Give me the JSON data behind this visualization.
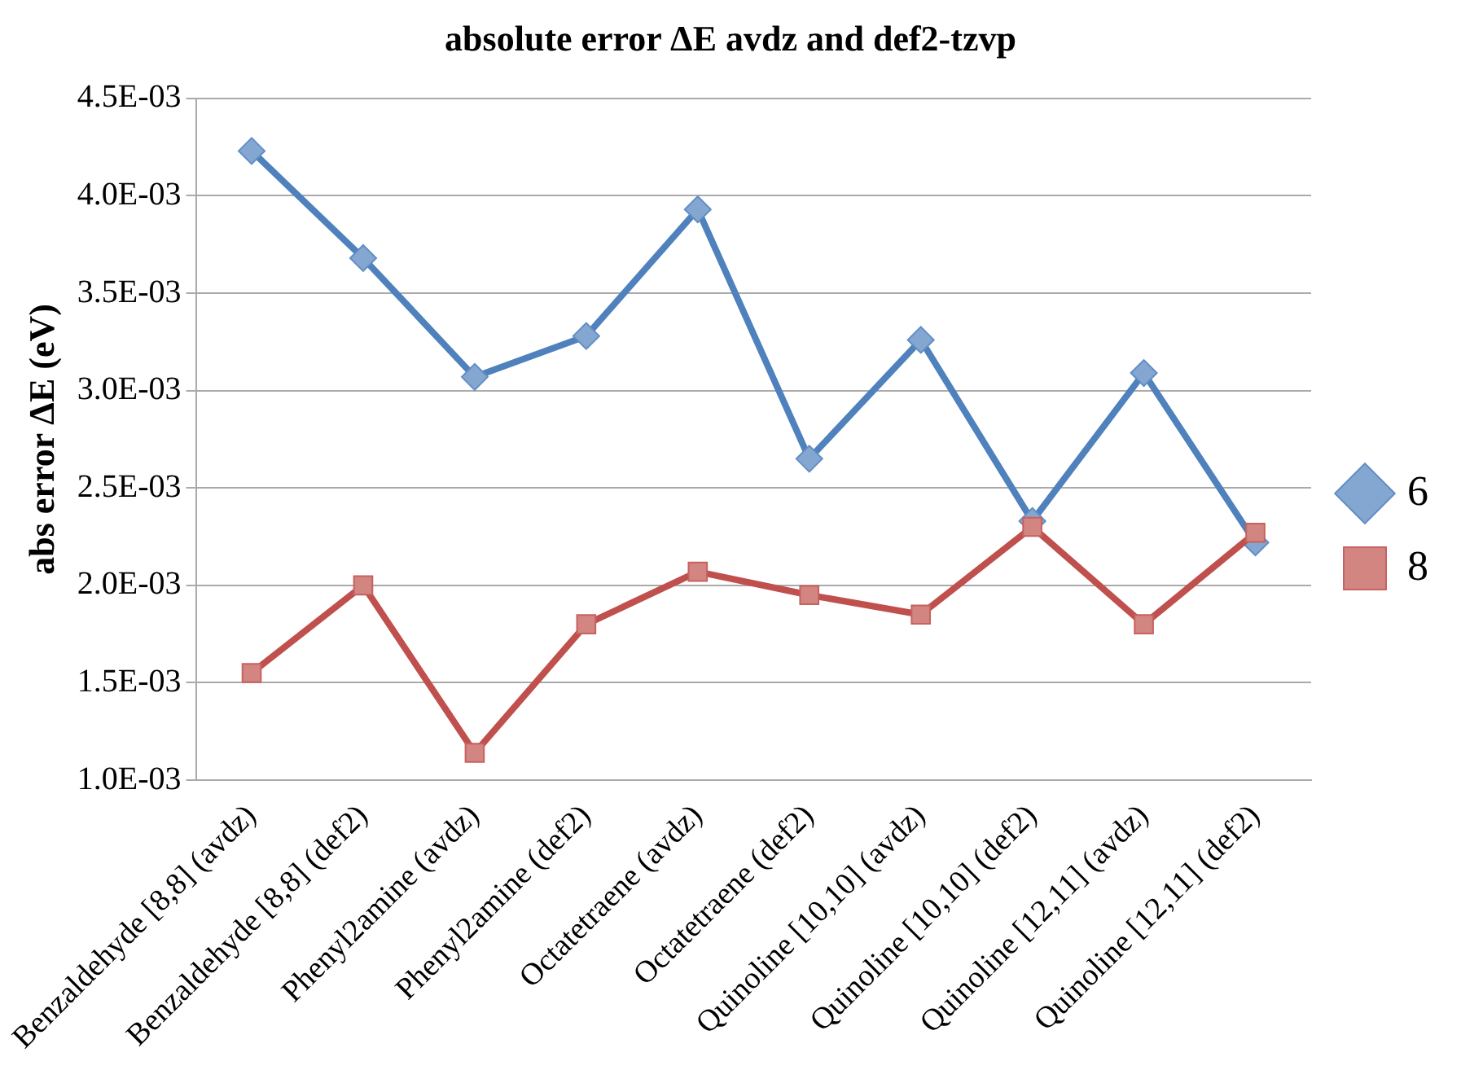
{
  "chart_data": {
    "type": "line",
    "title": "absolute error ΔE avdz and def2-tzvp",
    "ylabel": "abs error ΔE (eV)",
    "categories": [
      "Benzaldehyde [8,8] (avdz)",
      "Benzaldehyde [8,8] (def2)",
      "Phenyl2amine (avdz)",
      "Phenyl2amine (def2)",
      "Octatetraene (avdz)",
      "Octatetraene (def2)",
      "Quinoline [10,10] (avdz)",
      "Quinoline [10,10] (def2)",
      "Quinoline [12,11] (avdz)",
      "Quinoline [12,11] (def2)"
    ],
    "series": [
      {
        "name": "6",
        "color": "#4f81bd",
        "marker": "diamond",
        "values": [
          0.00423,
          0.00368,
          0.00307,
          0.00328,
          0.00393,
          0.00265,
          0.00326,
          0.00233,
          0.00309,
          0.00222
        ]
      },
      {
        "name": "8",
        "color": "#c0504d",
        "marker": "square",
        "values": [
          0.00155,
          0.002,
          0.00114,
          0.0018,
          0.00207,
          0.00195,
          0.00185,
          0.0023,
          0.0018,
          0.00227
        ]
      }
    ],
    "ylim": [
      0.001,
      0.0045
    ],
    "yticks": [
      {
        "value": 0.001,
        "label": "1.0E-03"
      },
      {
        "value": 0.0015,
        "label": "1.5E-03"
      },
      {
        "value": 0.002,
        "label": "2.0E-03"
      },
      {
        "value": 0.0025,
        "label": "2.5E-03"
      },
      {
        "value": 0.003,
        "label": "3.0E-03"
      },
      {
        "value": 0.0035,
        "label": "3.5E-03"
      },
      {
        "value": 0.004,
        "label": "4.0E-03"
      },
      {
        "value": 0.0045,
        "label": "4.5E-03"
      }
    ],
    "grid": "y",
    "legend": "right",
    "line_style": "solid"
  }
}
